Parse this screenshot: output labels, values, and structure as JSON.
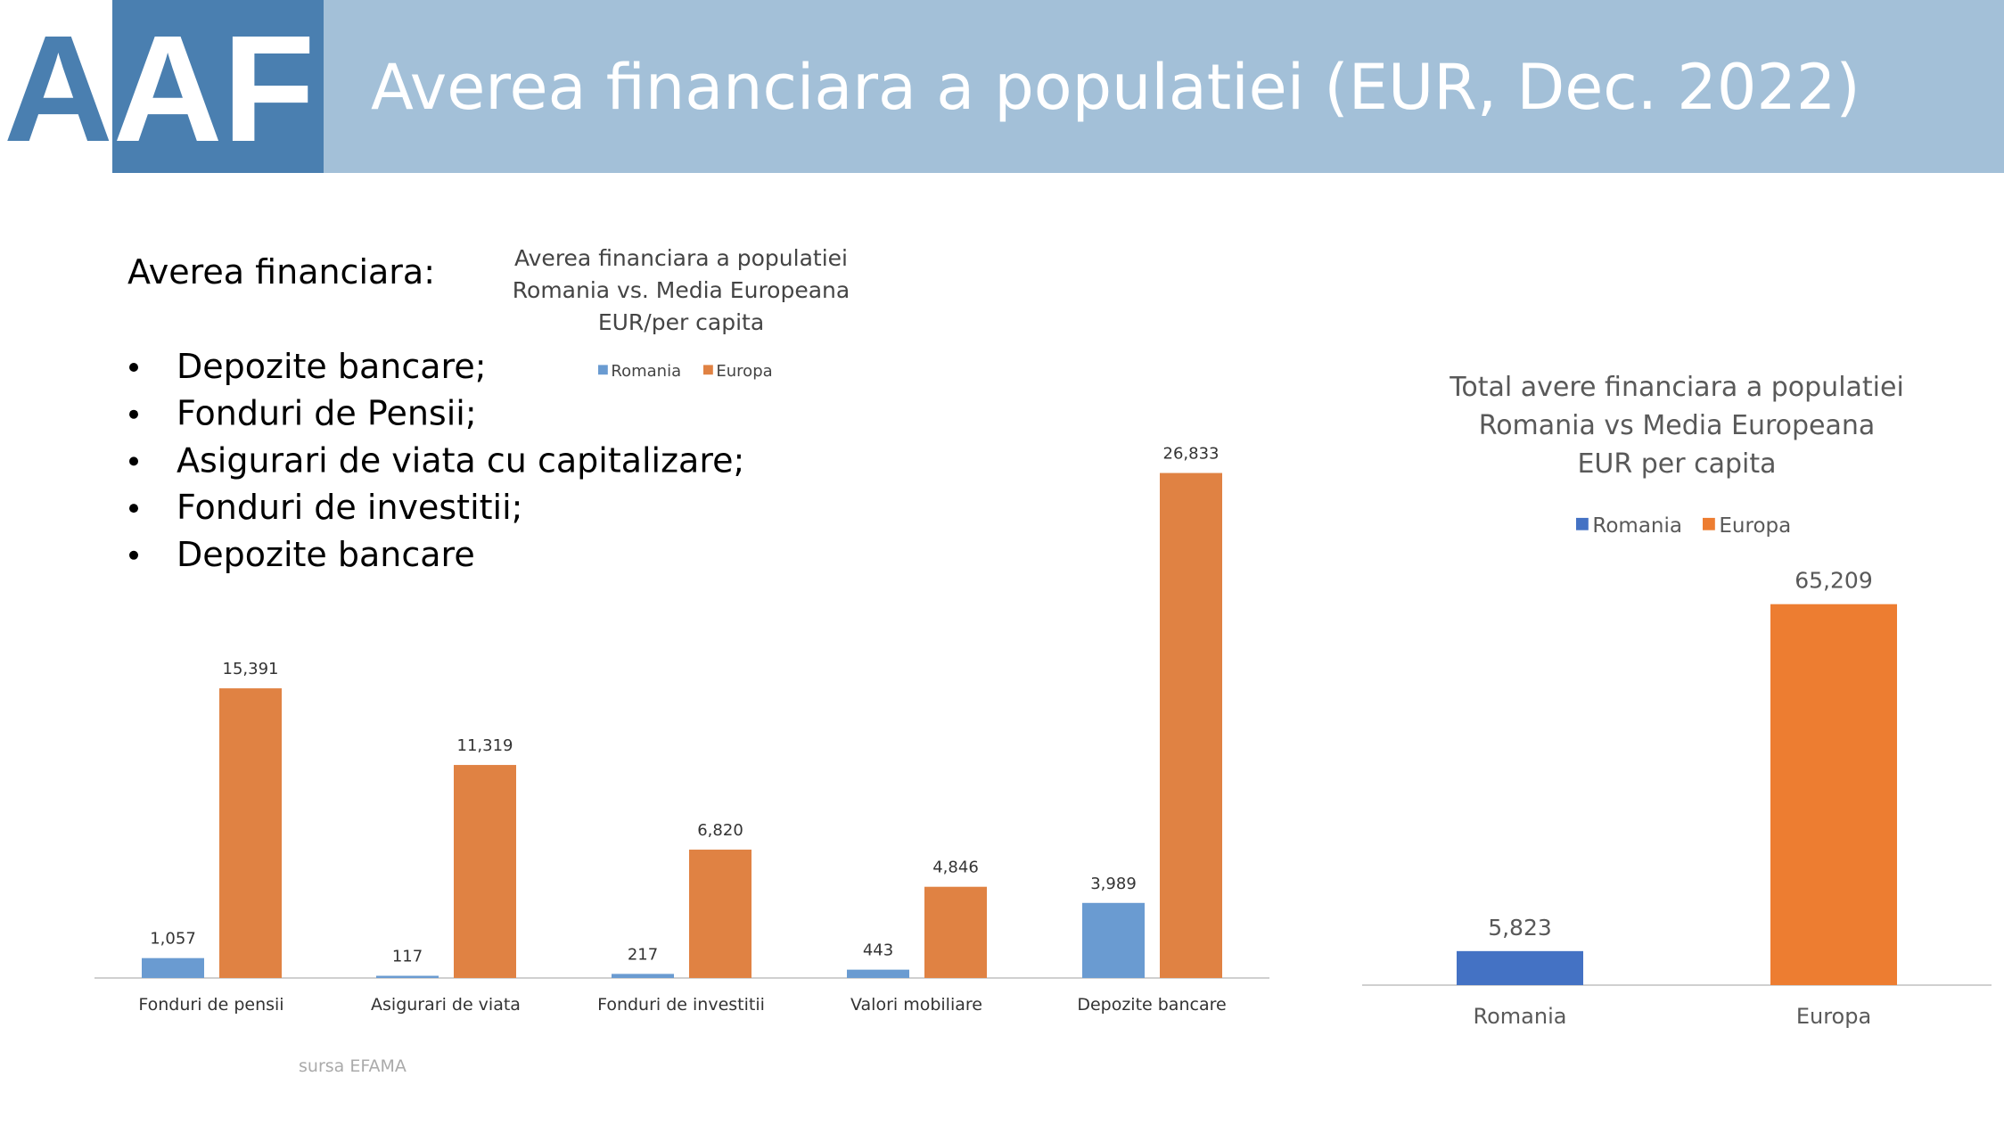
{
  "header": {
    "logo": "AAF",
    "title": "Averea financiara a populatiei (EUR, Dec. 2022)"
  },
  "content": {
    "heading": "Averea financiara:",
    "bullets": [
      "Depozite bancare;",
      "Fonduri de Pensii;",
      "Asigurari de viata cu capitalizare;",
      "Fonduri de investitii;",
      "Depozite bancare"
    ],
    "source": "sursa EFAMA"
  },
  "chart_data": [
    {
      "type": "bar",
      "title": [
        "Averea financiara a populatiei",
        "Romania vs. Media Europeana",
        "EUR/per capita"
      ],
      "categories": [
        "Fonduri de pensii",
        "Asigurari de viata",
        "Fonduri de investitii",
        "Valori mobiliare",
        "Depozite bancare"
      ],
      "series": [
        {
          "name": "Romania",
          "color": "#6a9bd1",
          "values": [
            1057,
            117,
            217,
            443,
            3989
          ],
          "value_labels": [
            "1,057",
            "117",
            "217",
            "443",
            "3,989"
          ]
        },
        {
          "name": "Europa",
          "color": "#e08243",
          "values": [
            15391,
            11319,
            6820,
            4846,
            26833
          ],
          "value_labels": [
            "15,391",
            "11,319",
            "6,820",
            "4,846",
            "26,833"
          ]
        }
      ],
      "legend": "top"
    },
    {
      "type": "bar",
      "title": [
        "Total avere financiara a populatiei",
        "Romania vs Media Europeana",
        "EUR per capita"
      ],
      "categories": [
        "Romania",
        "Europa"
      ],
      "series": [
        {
          "name": "Romania",
          "color": "#4472c4",
          "values": [
            5823,
            null
          ],
          "value_labels": [
            "5,823",
            null
          ]
        },
        {
          "name": "Europa",
          "color": "#ed7d31",
          "values": [
            null,
            65209
          ],
          "value_labels": [
            null,
            "65,209"
          ]
        }
      ],
      "legend": "top"
    }
  ]
}
